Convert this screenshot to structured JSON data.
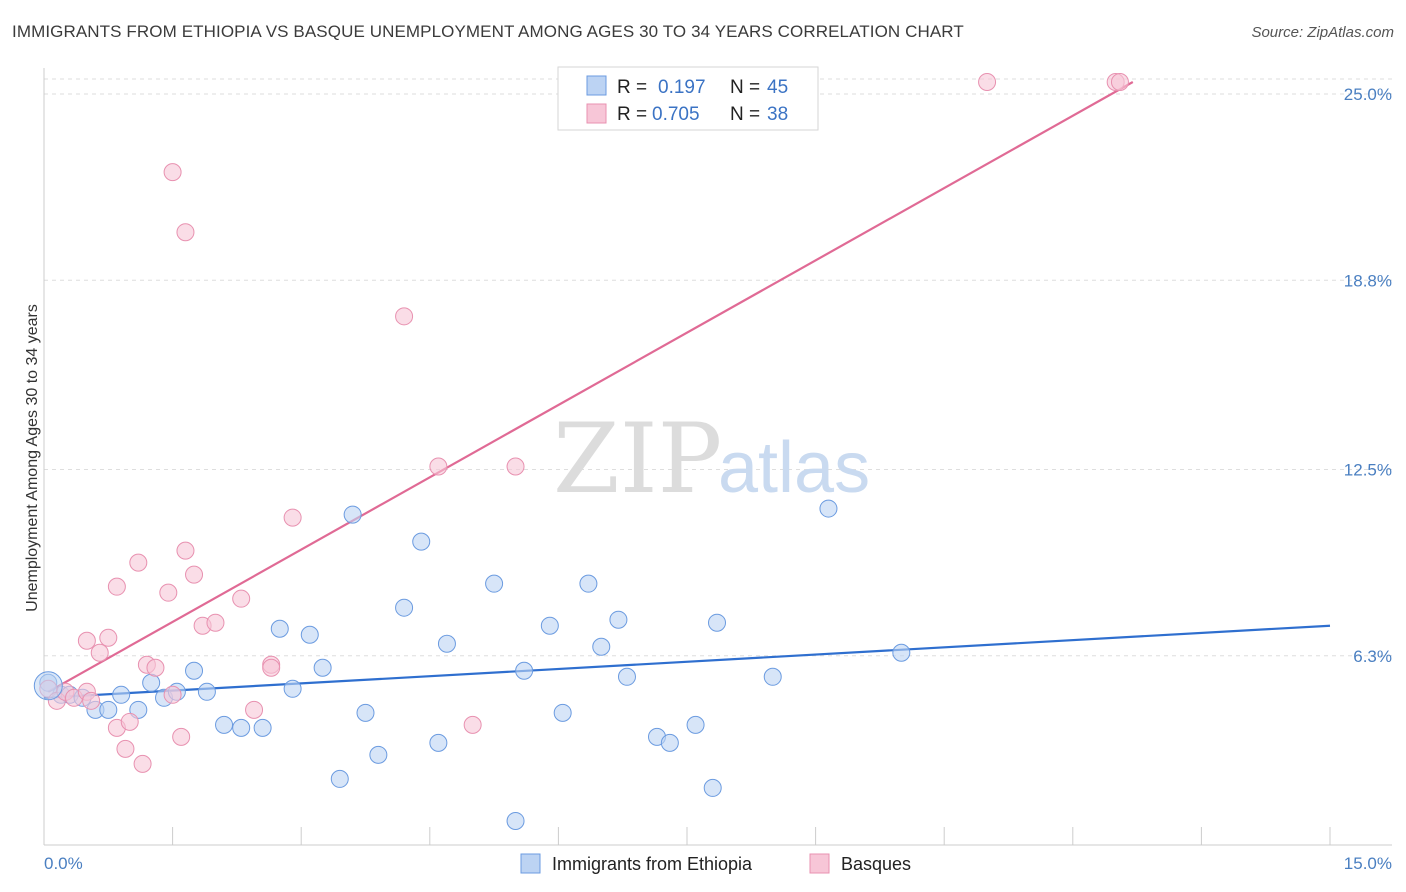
{
  "header": {
    "title": "IMMIGRANTS FROM ETHIOPIA VS BASQUE UNEMPLOYMENT AMONG AGES 30 TO 34 YEARS CORRELATION CHART",
    "source": "Source: ZipAtlas.com"
  },
  "watermark": {
    "zip": "ZIP",
    "atlas": "atlas"
  },
  "chart_data": {
    "type": "scatter",
    "title": "IMMIGRANTS FROM ETHIOPIA VS BASQUE UNEMPLOYMENT AMONG AGES 30 TO 34 YEARS CORRELATION CHART",
    "ylabel": "Unemployment Among Ages 30 to 34 years",
    "xlabel": "",
    "xlim": [
      0,
      15
    ],
    "ylim": [
      0,
      25.8
    ],
    "x_tick_labels": {
      "min": "0.0%",
      "max": "15.0%"
    },
    "y_ticks": [
      {
        "value": 6.3,
        "label": "6.3%"
      },
      {
        "value": 12.5,
        "label": "12.5%"
      },
      {
        "value": 18.8,
        "label": "18.8%"
      },
      {
        "value": 25.0,
        "label": "25.0%"
      }
    ],
    "grid": true,
    "legend_position": "top-center",
    "series": [
      {
        "name": "Immigrants from Ethiopia",
        "color": "#6b9be0",
        "fill": "#bcd3f3",
        "line_color": "#2f6fcf",
        "R": "0.197",
        "N": "45",
        "trend": {
          "x0": 0,
          "y0": 4.9,
          "x1": 15,
          "y1": 7.3
        },
        "points": [
          [
            0.05,
            5.4
          ],
          [
            0.2,
            5.0
          ],
          [
            0.3,
            5.0
          ],
          [
            0.45,
            4.9
          ],
          [
            0.6,
            4.5
          ],
          [
            0.75,
            4.5
          ],
          [
            0.9,
            5.0
          ],
          [
            1.1,
            4.5
          ],
          [
            1.25,
            5.4
          ],
          [
            1.4,
            4.9
          ],
          [
            1.9,
            5.1
          ],
          [
            1.55,
            5.1
          ],
          [
            2.1,
            4.0
          ],
          [
            1.75,
            5.8
          ],
          [
            2.3,
            3.9
          ],
          [
            2.55,
            3.9
          ],
          [
            2.75,
            7.2
          ],
          [
            2.9,
            5.2
          ],
          [
            3.1,
            7.0
          ],
          [
            3.25,
            5.9
          ],
          [
            3.45,
            2.2
          ],
          [
            3.6,
            11.0
          ],
          [
            3.75,
            4.4
          ],
          [
            3.9,
            3.0
          ],
          [
            4.2,
            7.9
          ],
          [
            4.4,
            10.1
          ],
          [
            4.6,
            3.4
          ],
          [
            4.7,
            6.7
          ],
          [
            5.25,
            8.7
          ],
          [
            5.5,
            0.8
          ],
          [
            5.6,
            5.8
          ],
          [
            5.9,
            7.3
          ],
          [
            6.05,
            4.4
          ],
          [
            6.35,
            8.7
          ],
          [
            6.5,
            6.6
          ],
          [
            6.7,
            7.5
          ],
          [
            6.8,
            5.6
          ],
          [
            7.15,
            3.6
          ],
          [
            7.3,
            3.4
          ],
          [
            7.6,
            4.0
          ],
          [
            7.8,
            1.9
          ],
          [
            7.85,
            7.4
          ],
          [
            8.5,
            5.6
          ],
          [
            9.15,
            11.2
          ],
          [
            10.0,
            6.4
          ]
        ]
      },
      {
        "name": "Basques",
        "color": "#e891b0",
        "fill": "#f7c6d7",
        "line_color": "#e06a95",
        "R": "0.705",
        "N": "38",
        "trend": {
          "x0": 0.05,
          "y0": 5.1,
          "x1": 12.7,
          "y1": 25.4
        },
        "points": [
          [
            0.05,
            5.2
          ],
          [
            0.15,
            4.8
          ],
          [
            0.25,
            5.1
          ],
          [
            0.35,
            4.9
          ],
          [
            0.5,
            5.1
          ],
          [
            0.55,
            4.8
          ],
          [
            0.5,
            6.8
          ],
          [
            0.65,
            6.4
          ],
          [
            0.75,
            6.9
          ],
          [
            0.85,
            3.9
          ],
          [
            0.85,
            8.6
          ],
          [
            0.95,
            3.2
          ],
          [
            1.0,
            4.1
          ],
          [
            1.1,
            9.4
          ],
          [
            1.15,
            2.7
          ],
          [
            1.2,
            6.0
          ],
          [
            1.3,
            5.9
          ],
          [
            1.45,
            8.4
          ],
          [
            1.5,
            5.0
          ],
          [
            1.5,
            22.4
          ],
          [
            1.6,
            3.6
          ],
          [
            1.65,
            20.4
          ],
          [
            1.65,
            9.8
          ],
          [
            1.75,
            9.0
          ],
          [
            1.85,
            7.3
          ],
          [
            2.0,
            7.4
          ],
          [
            2.3,
            8.2
          ],
          [
            2.45,
            4.5
          ],
          [
            2.65,
            6.0
          ],
          [
            2.65,
            5.9
          ],
          [
            2.9,
            10.9
          ],
          [
            4.2,
            17.6
          ],
          [
            4.6,
            12.6
          ],
          [
            5.0,
            4.0
          ],
          [
            5.5,
            12.6
          ],
          [
            11.0,
            25.4
          ],
          [
            12.5,
            25.4
          ],
          [
            12.55,
            25.4
          ]
        ]
      }
    ]
  }
}
